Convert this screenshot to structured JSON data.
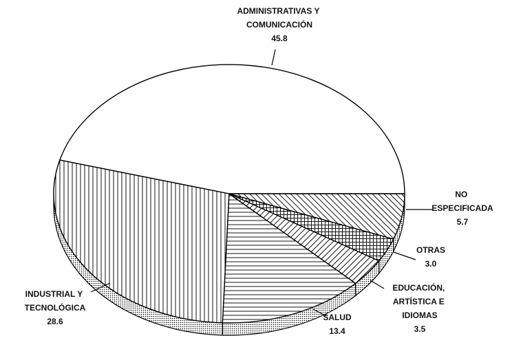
{
  "chart_data": {
    "type": "pie3d",
    "categories": [
      "ADMINISTRATIVAS Y COMUNICACIÓN",
      "INDUSTRIAL Y TECNOLÓGICA",
      "SALUD",
      "EDUCACIÓN, ARTÍSTICA E IDIOMAS",
      "OTRAS",
      "NO ESPECIFICADA"
    ],
    "values": [
      45.8,
      28.6,
      13.4,
      3.5,
      3.0,
      5.7
    ],
    "value_labels": [
      "45.8",
      "28.6",
      "13.4",
      "3.5",
      "3.0",
      "5.7"
    ],
    "color": "#000000"
  }
}
